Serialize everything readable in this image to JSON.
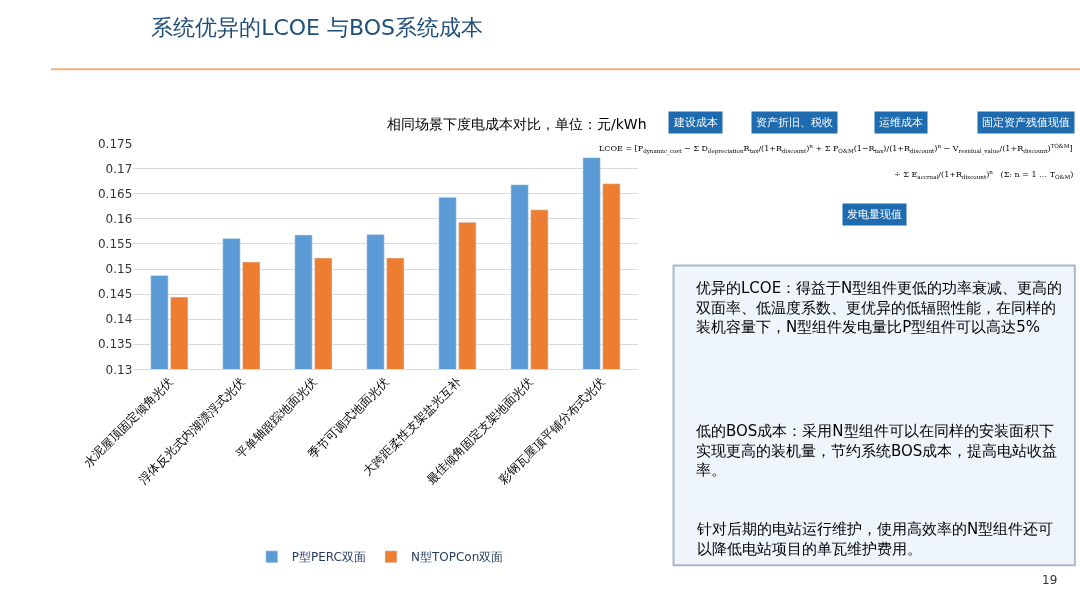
{
  "chart_data": {
    "type": "bar",
    "title": "系统优异的LCOE 与BOS系统成本",
    "subtitle": "相同场景下度电成本对比，单位：元/kWh",
    "categories": [
      "水泥屋顶固定倾角光伏",
      "浮体反光式内湖漂浮式光伏",
      "平单轴跟踪地面光伏",
      "季节可调式地面光伏",
      "大跨距柔性支架盐光互补",
      "最佳倾角固定支架地面光伏",
      "彩钢瓦屋顶平铺分布式光伏"
    ],
    "series": [
      {
        "name": "P型PERC双面",
        "color": "#5b9bd5",
        "values": [
          0.1487,
          0.1561,
          0.1568,
          0.1569,
          0.1643,
          0.1668,
          0.1722
        ]
      },
      {
        "name": "N型TOPCon双面",
        "color": "#ed7d31",
        "values": [
          0.1444,
          0.1514,
          0.1522,
          0.1522,
          0.1593,
          0.1618,
          0.167
        ]
      }
    ],
    "ylim": [
      0.13,
      0.175
    ],
    "yticks": [
      0.13,
      0.135,
      0.14,
      0.145,
      0.15,
      0.155,
      0.16,
      0.165,
      0.17,
      0.175
    ],
    "grid": "y",
    "legend": "bottom",
    "annotations": [
      "建设成本",
      "资产折旧、税收",
      "运维成本",
      "固定资产残值现值",
      "发电量现值",
      "LCOE = [P$_{dynamic_cost}$ − Σ D$_{depreciation}$R$_{tax}$/(1+R$_{discount}$)$^{n}$ + Σ P$_{O&M}$(1−R$_{tax}$)/(1+R$_{discount}$)$^{n}$ − V$_{residual_value}$/(1+R$_{discount}$)$^{TO&M}$]",
      "÷ Σ E$_{accrual}$/(1+R$_{discount}$)$^{n}$   (Σ: n = 1 … T$_{O&M}$)",
      "优异的LCOE：得益于N型组件更低的功率衰减、更高的双面率、低温度系数、更优异的低辐照性能，在同样的装机容量下，N型组件发电量比P型组件可以高达5%",
      "低的BOS成本：采用N型组件可以在同样的安装面积下实现更高的装机量，节约系统BOS成本，提高电站收益率。",
      "针对后期的电站运行维护，使用高效率的N型组件还可以降低电站项目的单瓦维护费用。",
      "19"
    ]
  }
}
